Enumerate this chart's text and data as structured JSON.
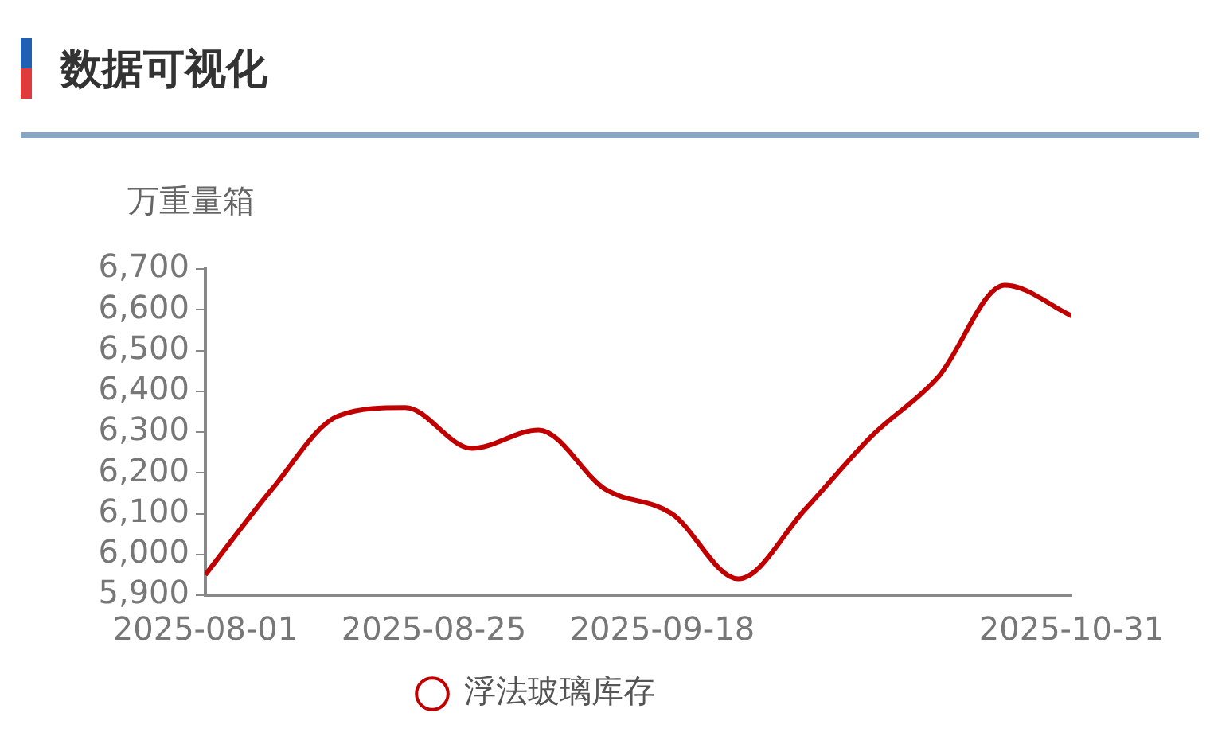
{
  "chart_data": {
    "type": "line",
    "title": "数据可视化",
    "ylabel": "万重量箱",
    "x": [
      "2025-08-01",
      "2025-08-08",
      "2025-08-15",
      "2025-08-22",
      "2025-08-29",
      "2025-09-05",
      "2025-09-12",
      "2025-09-19",
      "2025-09-26",
      "2025-10-03",
      "2025-10-10",
      "2025-10-17",
      "2025-10-24",
      "2025-10-31"
    ],
    "series": [
      {
        "name": "浮法玻璃库存",
        "color": "#c00000",
        "values": [
          5950,
          6160,
          6340,
          6360,
          6260,
          6305,
          6160,
          6100,
          5940,
          6110,
          6290,
          6435,
          6660,
          6585
        ]
      }
    ],
    "xlim": [
      "2025-08-01",
      "2025-10-31"
    ],
    "xticks": [
      "2025-08-01",
      "2025-08-25",
      "2025-09-18",
      "2025-10-31"
    ],
    "ylim": [
      5900,
      6700
    ],
    "yticks": [
      {
        "value": 5900,
        "label": "5,900"
      },
      {
        "value": 6000,
        "label": "6,000"
      },
      {
        "value": 6100,
        "label": "6,100"
      },
      {
        "value": 6200,
        "label": "6,200"
      },
      {
        "value": 6300,
        "label": "6,300"
      },
      {
        "value": 6400,
        "label": "6,400"
      },
      {
        "value": 6500,
        "label": "6,500"
      },
      {
        "value": 6600,
        "label": "6,600"
      },
      {
        "value": 6700,
        "label": "6,700"
      }
    ],
    "grid": false,
    "legend": "bottom",
    "marker": "none",
    "line_style": "solid"
  }
}
